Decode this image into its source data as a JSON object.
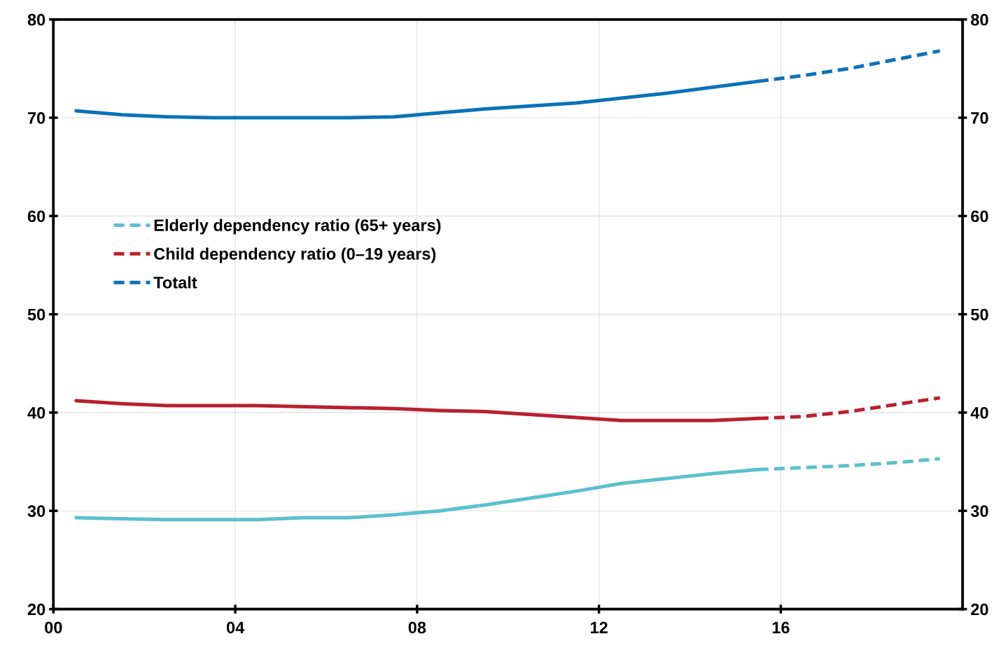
{
  "chart_data": {
    "type": "line",
    "x": [
      0.5,
      1.5,
      2.5,
      3.5,
      4.5,
      5.5,
      6.5,
      7.5,
      8.5,
      9.5,
      10.5,
      11.5,
      12.5,
      13.5,
      14.5,
      15.5,
      16.5,
      17.5,
      18.5,
      19.5
    ],
    "series": [
      {
        "color": "#5bc0cf",
        "line_style": "solid",
        "values": [
          29.3,
          29.2,
          29.1,
          29.1,
          29.1,
          29.3,
          29.3,
          29.6,
          30.0,
          30.6,
          31.3,
          32.0,
          32.8,
          33.3,
          33.8,
          34.2,
          null,
          null,
          null,
          null
        ]
      },
      {
        "name": "Elderly dependency ratio (65+ years)",
        "color": "#5bc0cf",
        "line_style": "dashed",
        "values": [
          null,
          null,
          null,
          null,
          null,
          null,
          null,
          null,
          null,
          null,
          null,
          null,
          null,
          null,
          null,
          34.2,
          34.4,
          34.6,
          34.9,
          35.3
        ]
      },
      {
        "color": "#b8202e",
        "line_style": "solid",
        "values": [
          41.2,
          40.9,
          40.7,
          40.7,
          40.7,
          40.6,
          40.5,
          40.4,
          40.2,
          40.1,
          39.8,
          39.5,
          39.2,
          39.2,
          39.2,
          39.4,
          null,
          null,
          null,
          null
        ]
      },
      {
        "name": "Child dependency ratio (0–19 years)",
        "color": "#b8202e",
        "line_style": "dashed",
        "values": [
          null,
          null,
          null,
          null,
          null,
          null,
          null,
          null,
          null,
          null,
          null,
          null,
          null,
          null,
          null,
          39.4,
          39.6,
          40.1,
          40.8,
          41.5
        ]
      },
      {
        "color": "#0b72b9",
        "line_style": "solid",
        "values": [
          70.7,
          70.3,
          70.1,
          70.0,
          70.0,
          70.0,
          70.0,
          70.1,
          70.5,
          70.9,
          71.2,
          71.5,
          72.0,
          72.5,
          73.1,
          73.7,
          null,
          null,
          null,
          null
        ]
      },
      {
        "name": "Totalt",
        "color": "#0b72b9",
        "line_style": "dashed",
        "values": [
          null,
          null,
          null,
          null,
          null,
          null,
          null,
          null,
          null,
          null,
          null,
          null,
          null,
          null,
          null,
          73.7,
          74.3,
          75.0,
          75.9,
          76.8
        ]
      }
    ],
    "xlim": [
      0,
      20
    ],
    "xticks": [
      {
        "value": 0,
        "label": "00"
      },
      {
        "value": 4,
        "label": "04"
      },
      {
        "value": 8,
        "label": "08"
      },
      {
        "value": 12,
        "label": "12"
      },
      {
        "value": 16,
        "label": "16"
      }
    ],
    "ylim": [
      20,
      80
    ],
    "yticks": [
      20,
      30,
      40,
      50,
      60,
      70,
      80
    ],
    "y2lim": [
      20,
      80
    ],
    "y2ticks": [
      20,
      30,
      40,
      50,
      60,
      70,
      80
    ],
    "grid": true,
    "legend": "center left",
    "marker": "none"
  }
}
